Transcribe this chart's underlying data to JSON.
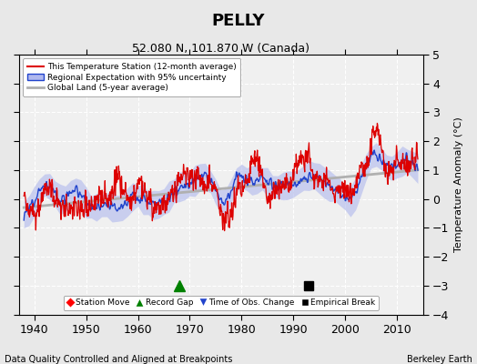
{
  "title": "PELLY",
  "subtitle": "52.080 N, 101.870 W (Canada)",
  "xlabel_left": "Data Quality Controlled and Aligned at Breakpoints",
  "xlabel_right": "Berkeley Earth",
  "ylabel": "Temperature Anomaly (°C)",
  "xlim": [
    1937,
    2015
  ],
  "ylim": [
    -4,
    5
  ],
  "yticks": [
    -4,
    -3,
    -2,
    -1,
    0,
    1,
    2,
    3,
    4,
    5
  ],
  "xticks": [
    1940,
    1950,
    1960,
    1970,
    1980,
    1990,
    2000,
    2010
  ],
  "bg_color": "#e8e8e8",
  "plot_bg_color": "#f0f0f0",
  "red_color": "#dd0000",
  "blue_color": "#2244cc",
  "blue_fill_color": "#b0b8ee",
  "gray_color": "#b0b0b0",
  "record_gap_x": 1968,
  "record_gap_y": -3.0,
  "emp_break_x": 1993,
  "emp_break_y": -3.0,
  "legend_items": [
    "This Temperature Station (12-month average)",
    "Regional Expectation with 95% uncertainty",
    "Global Land (5-year average)"
  ],
  "figsize": [
    5.24,
    4.0
  ],
  "dpi": 100
}
